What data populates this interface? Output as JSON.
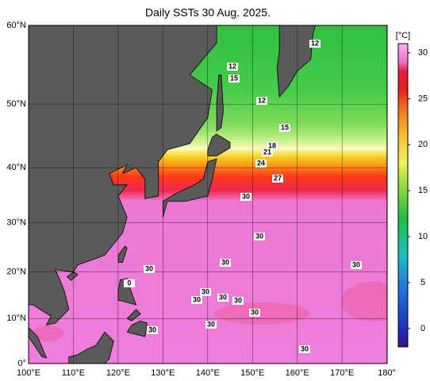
{
  "map": {
    "title": "Daily SSTs 30 Aug. 2025.",
    "lon_ticks": [
      {
        "value": 100,
        "label": "100°E"
      },
      {
        "value": 110,
        "label": "110°E"
      },
      {
        "value": 120,
        "label": "120°E"
      },
      {
        "value": 130,
        "label": "130°E"
      },
      {
        "value": 140,
        "label": "140°E"
      },
      {
        "value": 150,
        "label": "150°E"
      },
      {
        "value": 160,
        "label": "160°E"
      },
      {
        "value": 170,
        "label": "170°E"
      },
      {
        "value": 180,
        "label": "180°"
      }
    ],
    "lat_ticks": [
      {
        "value": 0,
        "label": "0°"
      },
      {
        "value": 10,
        "label": "10°N"
      },
      {
        "value": 20,
        "label": "20°N"
      },
      {
        "value": 30,
        "label": "30°N"
      },
      {
        "value": 40,
        "label": "40°N"
      },
      {
        "value": 50,
        "label": "50°N"
      },
      {
        "value": 60,
        "label": "60°N"
      }
    ],
    "colorbar": {
      "unit": "[°C]",
      "range": [
        -2,
        31
      ],
      "ticks": [
        0,
        5,
        10,
        15,
        20,
        25,
        30
      ]
    },
    "contour_labels": [
      "12",
      "12",
      "15",
      "12",
      "15",
      "18",
      "21",
      "24",
      "27",
      "30",
      "30",
      "30",
      "30",
      "30",
      "0",
      "30",
      "30",
      "30",
      "30",
      "30",
      "30",
      "30",
      "30"
    ]
  }
}
